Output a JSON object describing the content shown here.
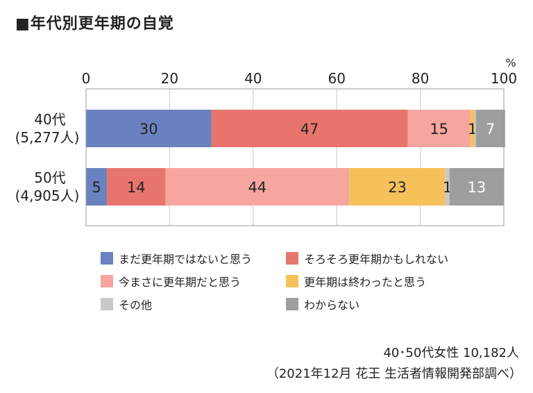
{
  "title": "■年代別更年期の自覚",
  "unit": "%",
  "chart_data": {
    "type": "bar",
    "orientation": "horizontal",
    "stacked": true,
    "xlim": [
      0,
      100
    ],
    "xticks": [
      "0",
      "20",
      "40",
      "60",
      "80",
      "100"
    ],
    "categories": [
      {
        "label1": "40代",
        "label2": "(5,277人)"
      },
      {
        "label1": "50代",
        "label2": "(4,905人)"
      }
    ],
    "series": [
      {
        "name": "まだ更年期ではないと思う",
        "color": "#6b82c0",
        "values": [
          30,
          5
        ],
        "labels": [
          "30",
          "5"
        ],
        "label_color": "#222222"
      },
      {
        "name": "そろそろ更年期かもしれない",
        "color": "#e8756d",
        "values": [
          47,
          14
        ],
        "labels": [
          "47",
          "14"
        ],
        "label_color": "#222222"
      },
      {
        "name": "今まさに更年期だと思う",
        "color": "#f7a59f",
        "values": [
          15,
          44
        ],
        "labels": [
          "15",
          "44"
        ],
        "label_color": "#222222"
      },
      {
        "name": "更年期は終わったと思う",
        "color": "#f5c15a",
        "values": [
          1,
          23
        ],
        "labels": [
          "1",
          "23"
        ],
        "label_color": "#222222"
      },
      {
        "name": "その他",
        "color": "#c8c8c8",
        "values": [
          0.3,
          1
        ],
        "labels": [
          "",
          "1"
        ],
        "label_color": "#222222"
      },
      {
        "name": "わからない",
        "color": "#9e9e9e",
        "values": [
          7,
          13
        ],
        "labels": [
          "7",
          "13"
        ],
        "label_color": "#ffffff"
      }
    ],
    "grid": true,
    "legend_position": "bottom"
  },
  "notes": {
    "line1": "40･50代女性 10,182人",
    "line2": "（2021年12月 花王 生活者情報開発部調べ）"
  }
}
